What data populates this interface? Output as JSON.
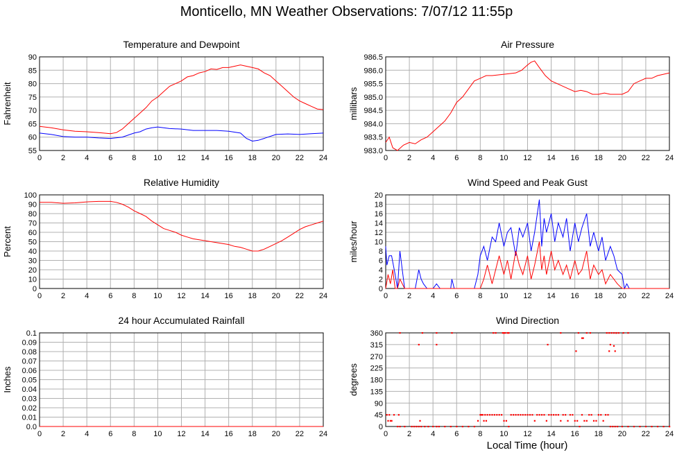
{
  "page": {
    "title": "Monticello, MN Weather Observations: 7/07/12 11:55p",
    "x_axis_label": "Local Time (hour)"
  },
  "colors": {
    "primary": "#ff0000",
    "secondary": "#0000ff",
    "grid": "#b0b0b0"
  },
  "chart_data": [
    {
      "id": "temp",
      "type": "line",
      "title": "Temperature and Dewpoint",
      "ylabel": "Fahrenheit",
      "xlim": [
        0,
        24
      ],
      "ylim": [
        55,
        90
      ],
      "xticks": [
        0,
        2,
        4,
        6,
        8,
        10,
        12,
        14,
        16,
        18,
        20,
        22,
        24
      ],
      "yticks": [
        55,
        60,
        65,
        70,
        75,
        80,
        85,
        90
      ],
      "grid": true,
      "series": [
        {
          "color": "#ff0000",
          "x": [
            0,
            1,
            2,
            3,
            4,
            5,
            6,
            6.5,
            7,
            7.5,
            8,
            8.5,
            9,
            9.5,
            10,
            10.5,
            11,
            11.5,
            12,
            12.5,
            13,
            13.5,
            14,
            14.5,
            15,
            15.5,
            16,
            16.5,
            17,
            17.5,
            18,
            18.5,
            19,
            19.5,
            20,
            20.5,
            21,
            21.5,
            22,
            22.5,
            23,
            23.5,
            24
          ],
          "y": [
            64,
            63.5,
            62.7,
            62.2,
            62,
            61.7,
            61.3,
            61.7,
            63,
            65,
            67,
            69,
            71,
            73.5,
            75,
            77,
            79,
            80,
            81,
            82.5,
            83,
            84,
            84.5,
            85.5,
            85.3,
            86,
            86,
            86.5,
            87,
            86.5,
            86,
            85.5,
            84,
            83,
            81,
            79,
            77,
            75,
            73.5,
            72.5,
            71.5,
            70.5,
            70.3
          ]
        },
        {
          "color": "#0000ff",
          "x": [
            0,
            1,
            2,
            3,
            4,
            5,
            6,
            7,
            8,
            8.5,
            9,
            9.5,
            10,
            10.5,
            11,
            12,
            13,
            14,
            15,
            16,
            17,
            17.5,
            18,
            18.5,
            19,
            20,
            21,
            22,
            23,
            24
          ],
          "y": [
            61.5,
            61,
            60.2,
            60,
            60,
            59.7,
            59.5,
            60,
            61.5,
            62,
            63,
            63.5,
            63.8,
            63.5,
            63.2,
            63,
            62.5,
            62.5,
            62.5,
            62.2,
            61.5,
            59.5,
            58.5,
            58.8,
            59.5,
            61,
            61.2,
            61,
            61.3,
            61.5
          ]
        }
      ]
    },
    {
      "id": "pressure",
      "type": "line",
      "title": "Air Pressure",
      "ylabel": "millibars",
      "xlim": [
        0,
        24
      ],
      "ylim": [
        983.0,
        986.5
      ],
      "xticks": [
        0,
        2,
        4,
        6,
        8,
        10,
        12,
        14,
        16,
        18,
        20,
        22,
        24
      ],
      "yticks": [
        983.0,
        983.5,
        984.0,
        984.5,
        985.0,
        985.5,
        986.0,
        986.5
      ],
      "ytick_labels": [
        "983.0",
        "983.5",
        "984.0",
        "984.5",
        "985.0",
        "985.5",
        "986.0",
        "986.5"
      ],
      "grid": true,
      "series": [
        {
          "color": "#ff0000",
          "x": [
            0,
            0.3,
            0.6,
            1,
            1.5,
            2,
            2.5,
            3,
            3.5,
            4,
            4.5,
            5,
            5.5,
            6,
            6.5,
            7,
            7.5,
            8,
            8.5,
            9,
            10,
            11,
            11.5,
            12,
            12.3,
            12.6,
            13,
            13.5,
            14,
            14.5,
            15,
            15.5,
            16,
            16.5,
            17,
            17.5,
            18,
            18.5,
            19,
            19.5,
            20,
            20.5,
            21,
            21.5,
            22,
            22.5,
            23,
            23.5,
            24
          ],
          "y": [
            983.3,
            983.5,
            983.1,
            983.0,
            983.2,
            983.3,
            983.25,
            983.4,
            983.5,
            983.7,
            983.9,
            984.1,
            984.4,
            984.8,
            985.0,
            985.3,
            985.6,
            985.7,
            985.8,
            985.8,
            985.85,
            985.9,
            986.0,
            986.2,
            986.3,
            986.35,
            986.1,
            985.8,
            985.6,
            985.5,
            985.4,
            985.3,
            985.2,
            985.25,
            985.2,
            985.1,
            985.1,
            985.15,
            985.1,
            985.1,
            985.1,
            985.2,
            985.5,
            985.6,
            985.7,
            985.7,
            985.8,
            985.85,
            985.9
          ]
        }
      ]
    },
    {
      "id": "humidity",
      "type": "line",
      "title": "Relative Humidity",
      "ylabel": "Percent",
      "xlim": [
        0,
        24
      ],
      "ylim": [
        0,
        100
      ],
      "xticks": [
        0,
        2,
        4,
        6,
        8,
        10,
        12,
        14,
        16,
        18,
        20,
        22,
        24
      ],
      "yticks": [
        0,
        10,
        20,
        30,
        40,
        50,
        60,
        70,
        80,
        90,
        100
      ],
      "grid": true,
      "series": [
        {
          "color": "#ff0000",
          "x": [
            0,
            1,
            2,
            3,
            4,
            5,
            6,
            6.5,
            7,
            7.5,
            8,
            8.5,
            9,
            9.5,
            10,
            10.5,
            11,
            11.5,
            12,
            12.5,
            13,
            13.5,
            14,
            14.5,
            15,
            15.5,
            16,
            16.5,
            17,
            17.5,
            18,
            18.5,
            19,
            19.5,
            20,
            20.5,
            21,
            21.5,
            22,
            22.5,
            23,
            23.5,
            24
          ],
          "y": [
            92,
            92,
            91,
            91.5,
            92.5,
            93,
            93,
            92,
            90,
            87,
            83,
            80,
            77,
            72,
            68,
            64,
            62,
            60,
            57,
            55,
            53,
            52,
            51,
            50,
            49,
            48,
            47,
            45,
            44,
            42,
            40,
            40,
            42,
            45,
            48,
            51,
            55,
            59,
            63,
            66,
            68,
            70,
            72
          ]
        }
      ]
    },
    {
      "id": "wind",
      "type": "line",
      "title": "Wind Speed and Peak Gust",
      "ylabel": "miles/hour",
      "xlim": [
        0,
        24
      ],
      "ylim": [
        0,
        20
      ],
      "xticks": [
        0,
        2,
        4,
        6,
        8,
        10,
        12,
        14,
        16,
        18,
        20,
        22,
        24
      ],
      "yticks": [
        0,
        2,
        4,
        6,
        8,
        10,
        12,
        14,
        16,
        18,
        20
      ],
      "grid": true,
      "series": [
        {
          "color": "#0000ff",
          "x": [
            0,
            0.1,
            0.3,
            0.5,
            0.8,
            1,
            1.2,
            1.4,
            1.6,
            1.8,
            2,
            2.5,
            2.8,
            3,
            3.2,
            3.5,
            4,
            4.3,
            4.6,
            5,
            5.5,
            5.6,
            5.8,
            6,
            7,
            7.5,
            7.8,
            8,
            8.3,
            8.6,
            9,
            9.3,
            9.6,
            10,
            10.3,
            10.6,
            11,
            11.3,
            11.6,
            12,
            12.3,
            12.6,
            13,
            13.2,
            13.4,
            13.6,
            14,
            14.3,
            14.6,
            15,
            15.3,
            15.6,
            16,
            16.3,
            16.6,
            17,
            17.3,
            17.6,
            18,
            18.3,
            18.6,
            19,
            19.3,
            19.6,
            20,
            20.2,
            20.4,
            20.6,
            21,
            22,
            23,
            24
          ],
          "y": [
            9,
            5,
            7,
            7,
            3,
            0,
            8,
            4,
            0,
            0,
            0,
            0,
            4,
            2,
            1,
            0,
            0,
            1,
            0,
            0,
            0,
            2,
            0,
            0,
            0,
            0,
            3,
            7,
            9,
            6,
            11,
            10,
            14,
            9,
            12,
            13,
            7,
            13,
            11,
            14,
            8,
            12,
            19,
            9,
            15,
            12,
            16,
            10,
            14,
            11,
            15,
            8,
            14,
            10,
            13,
            16,
            9,
            12,
            8,
            11,
            6,
            9,
            7,
            4,
            3,
            0,
            1,
            0,
            0,
            0,
            0,
            0
          ]
        },
        {
          "color": "#ff0000",
          "x": [
            0,
            0.2,
            0.4,
            0.6,
            0.8,
            1,
            1.2,
            1.6,
            2,
            8,
            8.3,
            8.6,
            9,
            9.3,
            9.6,
            10,
            10.3,
            10.6,
            11,
            11.3,
            11.6,
            12,
            12.3,
            12.6,
            13,
            13.2,
            13.4,
            13.6,
            14,
            14.3,
            14.6,
            15,
            15.3,
            15.6,
            16,
            16.3,
            16.6,
            17,
            17.3,
            17.6,
            18,
            18.3,
            18.6,
            19,
            19.3,
            19.6,
            20,
            24
          ],
          "y": [
            0,
            3,
            1,
            4,
            0,
            0,
            2,
            0,
            0,
            0,
            2,
            5,
            1,
            4,
            7,
            3,
            6,
            2,
            8,
            5,
            3,
            7,
            2,
            5,
            10,
            4,
            7,
            3,
            8,
            4,
            6,
            3,
            5,
            2,
            6,
            3,
            4,
            8,
            2,
            5,
            3,
            4,
            1,
            3,
            2,
            1,
            0,
            0
          ]
        }
      ]
    },
    {
      "id": "rain",
      "type": "line",
      "title": "24 hour Accumulated Rainfall",
      "ylabel": "Inches",
      "xlim": [
        0,
        24
      ],
      "ylim": [
        0,
        0.1
      ],
      "xticks": [
        0,
        2,
        4,
        6,
        8,
        10,
        12,
        14,
        16,
        18,
        20,
        22,
        24
      ],
      "yticks": [
        0,
        0.01,
        0.02,
        0.03,
        0.04,
        0.05,
        0.06,
        0.07,
        0.08,
        0.09,
        0.1
      ],
      "ytick_labels": [
        "0.0",
        "0.01",
        "0.02",
        "0.03",
        "0.04",
        "0.05",
        "0.06",
        "0.07",
        "0.08",
        "0.09",
        "0.1"
      ],
      "grid": true,
      "series": [
        {
          "color": "#ff0000",
          "x": [
            0,
            24
          ],
          "y": [
            0,
            0
          ]
        }
      ]
    },
    {
      "id": "winddir",
      "type": "scatter",
      "title": "Wind Direction",
      "ylabel": "degrees",
      "xlabel": "Local Time (hour)",
      "xlim": [
        0,
        24
      ],
      "ylim": [
        0,
        360
      ],
      "xticks": [
        0,
        2,
        4,
        6,
        8,
        10,
        12,
        14,
        16,
        18,
        20,
        22,
        24
      ],
      "yticks": [
        0,
        45,
        90,
        135,
        180,
        225,
        270,
        315,
        360
      ],
      "grid": true,
      "series": [
        {
          "color": "#ff0000",
          "x": [
            0.1,
            0.3,
            0.5,
            0.7,
            0.2,
            0.4,
            1.0,
            1.1,
            1.2,
            1.6,
            2.2,
            2.4,
            2.6,
            2.8,
            2.9,
            3.0,
            3.3,
            3.6,
            4.0,
            4.3,
            4.5,
            5.0,
            5.5,
            6,
            6.5,
            7,
            7.5,
            7.8,
            8.0,
            8.1,
            8.2,
            8.4,
            8.6,
            8.8,
            9.0,
            9.2,
            9.4,
            9.6,
            9.8,
            10,
            10.2,
            10.4,
            10.6,
            10.8,
            11,
            11.2,
            11.4,
            11.6,
            11.8,
            12,
            12.2,
            12.4,
            12.6,
            12.8,
            13,
            13.2,
            13.4,
            13.6,
            13.8,
            14,
            14.2,
            14.4,
            14.6,
            14.8,
            15,
            15.2,
            15.4,
            15.6,
            15.8,
            16,
            16.2,
            16.4,
            16.6,
            16.8,
            17,
            17.2,
            17.4,
            17.6,
            17.8,
            18,
            18.2,
            18.4,
            18.6,
            18.8,
            19,
            19.2,
            19.4,
            19.6,
            20,
            20.5,
            21,
            21.5,
            22,
            22.5,
            23,
            23.5,
            24,
            1.2,
            3.1,
            4.3,
            5.6,
            2.8,
            4.3,
            9.1,
            9.3,
            10.3,
            13.7,
            14.8,
            16.3,
            16.6,
            16.7,
            17.0,
            17.3,
            18.7,
            18.9,
            19.1,
            19.3,
            19.5,
            19.7,
            20.1,
            20.5,
            18.9,
            19.3,
            19.4,
            16.1,
            19.0,
            19.5,
            9.9,
            10.0,
            10.1,
            10.4,
            8.3,
            8.5
          ],
          "y": [
            45,
            45,
            22,
            45,
            22,
            22,
            0,
            45,
            0,
            0,
            0,
            0,
            0,
            0,
            22,
            0,
            0,
            0,
            0,
            0,
            0,
            0,
            0,
            0,
            0,
            0,
            0,
            22,
            45,
            45,
            45,
            45,
            45,
            45,
            45,
            45,
            45,
            45,
            45,
            22,
            22,
            0,
            45,
            45,
            45,
            45,
            45,
            45,
            45,
            45,
            45,
            45,
            22,
            45,
            45,
            45,
            45,
            22,
            45,
            45,
            45,
            45,
            45,
            22,
            45,
            45,
            22,
            45,
            45,
            22,
            22,
            0,
            45,
            22,
            22,
            45,
            45,
            22,
            22,
            45,
            45,
            22,
            45,
            45,
            0,
            0,
            0,
            0,
            0,
            0,
            0,
            0,
            0,
            0,
            0,
            0,
            0,
            360,
            360,
            360,
            360,
            315,
            315,
            360,
            360,
            360,
            315,
            360,
            360,
            340,
            340,
            360,
            360,
            360,
            360,
            360,
            360,
            360,
            360,
            360,
            360,
            290,
            310,
            290,
            290,
            315,
            360,
            360,
            360,
            360,
            360,
            22,
            22
          ]
        }
      ]
    }
  ]
}
